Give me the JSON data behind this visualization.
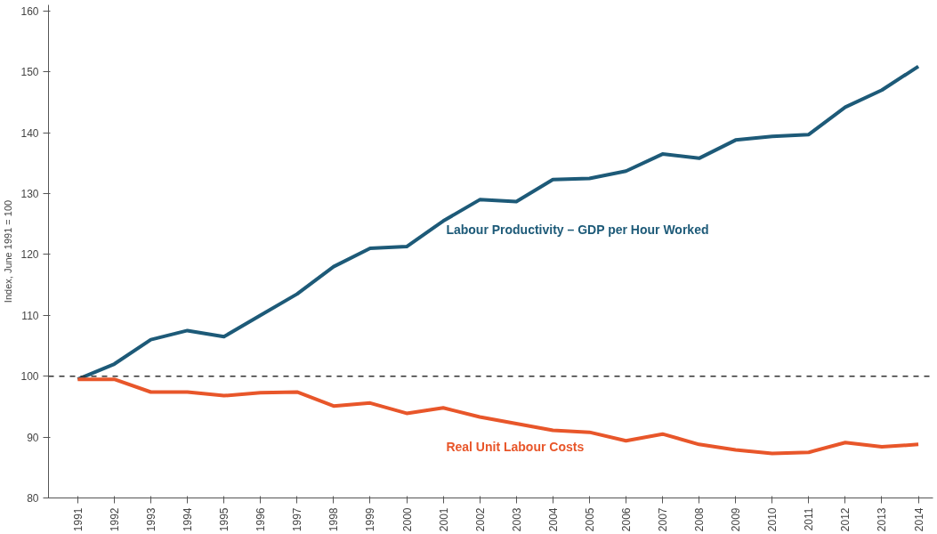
{
  "chart_data": {
    "type": "line",
    "ylabel": "Index, June 1991 = 100",
    "categories": [
      "1991",
      "1992",
      "1993",
      "1994",
      "1995",
      "1996",
      "1997",
      "1998",
      "1999",
      "2000",
      "2001",
      "2002",
      "2003",
      "2004",
      "2005",
      "2006",
      "2007",
      "2008",
      "2009",
      "2010",
      "2011",
      "2012",
      "2013",
      "2014"
    ],
    "series": [
      {
        "name": "Labour Productivity – GDP per Hour Worked",
        "color": "#1d5a78",
        "values": [
          99.5,
          102,
          106,
          107.5,
          106.5,
          110,
          113.5,
          118,
          121,
          121.3,
          125.5,
          129,
          128.7,
          132.3,
          132.5,
          133.7,
          136.5,
          135.8,
          138.8,
          139.4,
          139.7,
          144.2,
          147,
          150.9
        ]
      },
      {
        "name": "Real Unit Labour Costs",
        "color": "#e8562a",
        "values": [
          99.5,
          99.5,
          97.4,
          97.4,
          96.8,
          97.3,
          97.4,
          95.1,
          95.6,
          93.9,
          94.8,
          93.3,
          92.2,
          91.1,
          90.8,
          89.4,
          90.5,
          88.8,
          87.9,
          87.3,
          87.5,
          89.1,
          88.4,
          88.8
        ]
      }
    ],
    "ylim": [
      80,
      161
    ],
    "yticks": [
      80,
      90,
      100,
      110,
      120,
      130,
      140,
      150,
      160
    ],
    "ref_lines": [
      {
        "axis": "y",
        "value": 100,
        "line_style": "dashed",
        "color": "#333333"
      }
    ],
    "grid": false,
    "legend": false,
    "line_style": "solid",
    "marker": "none"
  }
}
